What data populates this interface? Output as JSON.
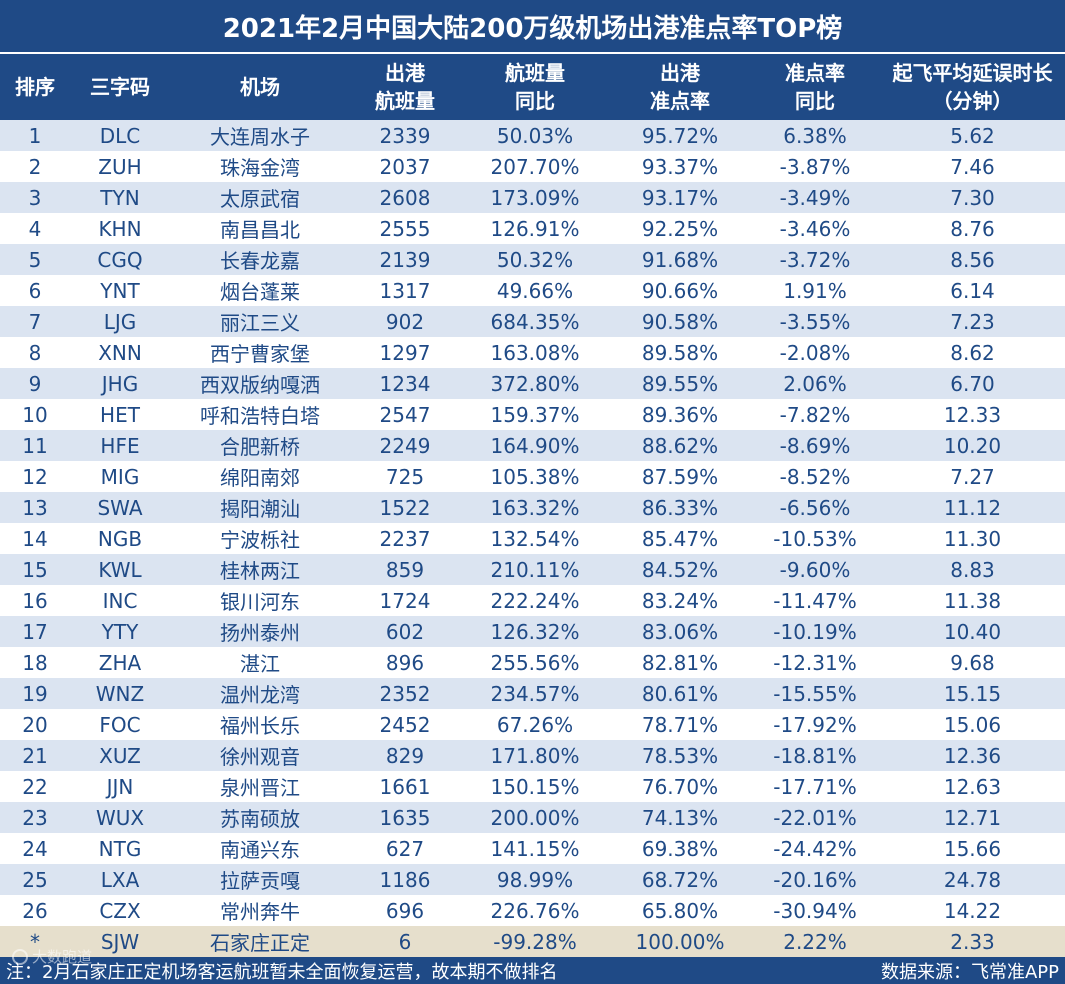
{
  "title": "2021年2月中国大陆200万级机场出港准点率TOP榜",
  "headers": [
    {
      "line1": "排序",
      "line2": ""
    },
    {
      "line1": "三字码",
      "line2": ""
    },
    {
      "line1": "机场",
      "line2": ""
    },
    {
      "line1": "出港",
      "line2": "航班量"
    },
    {
      "line1": "航班量",
      "line2": "同比"
    },
    {
      "line1": "出港",
      "line2": "准点率"
    },
    {
      "line1": "准点率",
      "line2": "同比"
    },
    {
      "line1": "起飞平均延误时长",
      "line2": "（分钟）"
    }
  ],
  "chart_data": {
    "type": "table",
    "columns": [
      "排序",
      "三字码",
      "机场",
      "出港航班量",
      "航班量同比",
      "出港准点率",
      "准点率同比",
      "起飞平均延误时长（分钟）"
    ],
    "rows": [
      [
        "1",
        "DLC",
        "大连周水子",
        "2339",
        "50.03%",
        "95.72%",
        "6.38%",
        "5.62"
      ],
      [
        "2",
        "ZUH",
        "珠海金湾",
        "2037",
        "207.70%",
        "93.37%",
        "-3.87%",
        "7.46"
      ],
      [
        "3",
        "TYN",
        "太原武宿",
        "2608",
        "173.09%",
        "93.17%",
        "-3.49%",
        "7.30"
      ],
      [
        "4",
        "KHN",
        "南昌昌北",
        "2555",
        "126.91%",
        "92.25%",
        "-3.46%",
        "8.76"
      ],
      [
        "5",
        "CGQ",
        "长春龙嘉",
        "2139",
        "50.32%",
        "91.68%",
        "-3.72%",
        "8.56"
      ],
      [
        "6",
        "YNT",
        "烟台蓬莱",
        "1317",
        "49.66%",
        "90.66%",
        "1.91%",
        "6.14"
      ],
      [
        "7",
        "LJG",
        "丽江三义",
        "902",
        "684.35%",
        "90.58%",
        "-3.55%",
        "7.23"
      ],
      [
        "8",
        "XNN",
        "西宁曹家堡",
        "1297",
        "163.08%",
        "89.58%",
        "-2.08%",
        "8.62"
      ],
      [
        "9",
        "JHG",
        "西双版纳嘎洒",
        "1234",
        "372.80%",
        "89.55%",
        "2.06%",
        "6.70"
      ],
      [
        "10",
        "HET",
        "呼和浩特白塔",
        "2547",
        "159.37%",
        "89.36%",
        "-7.82%",
        "12.33"
      ],
      [
        "11",
        "HFE",
        "合肥新桥",
        "2249",
        "164.90%",
        "88.62%",
        "-8.69%",
        "10.20"
      ],
      [
        "12",
        "MIG",
        "绵阳南郊",
        "725",
        "105.38%",
        "87.59%",
        "-8.52%",
        "7.27"
      ],
      [
        "13",
        "SWA",
        "揭阳潮汕",
        "1522",
        "163.32%",
        "86.33%",
        "-6.56%",
        "11.12"
      ],
      [
        "14",
        "NGB",
        "宁波栎社",
        "2237",
        "132.54%",
        "85.47%",
        "-10.53%",
        "11.30"
      ],
      [
        "15",
        "KWL",
        "桂林两江",
        "859",
        "210.11%",
        "84.52%",
        "-9.60%",
        "8.83"
      ],
      [
        "16",
        "INC",
        "银川河东",
        "1724",
        "222.24%",
        "83.24%",
        "-11.47%",
        "11.38"
      ],
      [
        "17",
        "YTY",
        "扬州泰州",
        "602",
        "126.32%",
        "83.06%",
        "-10.19%",
        "10.40"
      ],
      [
        "18",
        "ZHA",
        "湛江",
        "896",
        "255.56%",
        "82.81%",
        "-12.31%",
        "9.68"
      ],
      [
        "19",
        "WNZ",
        "温州龙湾",
        "2352",
        "234.57%",
        "80.61%",
        "-15.55%",
        "15.15"
      ],
      [
        "20",
        "FOC",
        "福州长乐",
        "2452",
        "67.26%",
        "78.71%",
        "-17.92%",
        "15.06"
      ],
      [
        "21",
        "XUZ",
        "徐州观音",
        "829",
        "171.80%",
        "78.53%",
        "-18.81%",
        "12.36"
      ],
      [
        "22",
        "JJN",
        "泉州晋江",
        "1661",
        "150.15%",
        "76.70%",
        "-17.71%",
        "12.63"
      ],
      [
        "23",
        "WUX",
        "苏南硕放",
        "1635",
        "200.00%",
        "74.13%",
        "-22.01%",
        "12.71"
      ],
      [
        "24",
        "NTG",
        "南通兴东",
        "627",
        "141.15%",
        "69.38%",
        "-24.42%",
        "15.66"
      ],
      [
        "25",
        "LXA",
        "拉萨贡嘎",
        "1186",
        "98.99%",
        "68.72%",
        "-20.16%",
        "24.78"
      ],
      [
        "26",
        "CZX",
        "常州奔牛",
        "696",
        "226.76%",
        "65.80%",
        "-30.94%",
        "14.22"
      ],
      [
        "*",
        "SJW",
        "石家庄正定",
        "6",
        "-99.28%",
        "100.00%",
        "2.22%",
        "2.33"
      ]
    ]
  },
  "footer": {
    "note": "注：2月石家庄正定机场客运航班暂未全面恢复运营，故本期不做排名",
    "source": "数据来源：飞常准APP"
  },
  "watermark": "大数跑道",
  "colors": {
    "header_bg": "#1f4a86",
    "stripe": "#dbe4f1",
    "special_row": "#e6dfcc",
    "text": "#1f4a86"
  }
}
